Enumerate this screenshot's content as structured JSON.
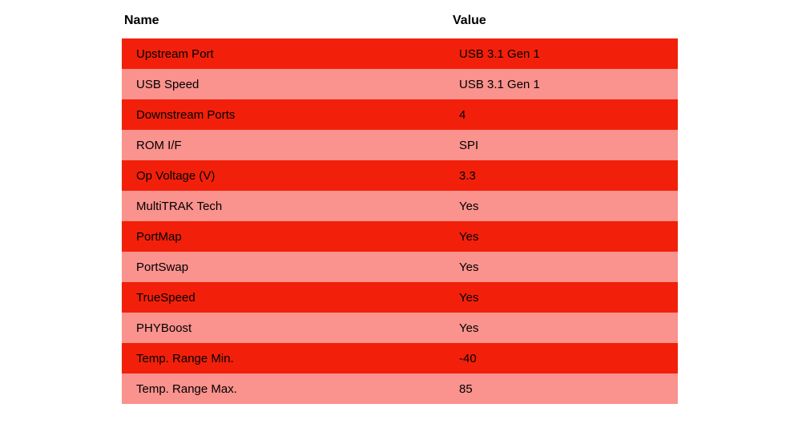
{
  "colors": {
    "background": "#ffffff",
    "row_red": "#f2200a",
    "row_pink": "#fa928d",
    "text": "#000000"
  },
  "table": {
    "headers": {
      "name": "Name",
      "value": "Value"
    },
    "rows": [
      {
        "name": "Upstream Port",
        "value": "USB 3.1 Gen 1"
      },
      {
        "name": "USB Speed",
        "value": "USB 3.1 Gen 1"
      },
      {
        "name": "Downstream Ports",
        "value": "4"
      },
      {
        "name": "ROM I/F",
        "value": "SPI"
      },
      {
        "name": "Op Voltage (V)",
        "value": "3.3"
      },
      {
        "name": "MultiTRAK Tech",
        "value": "Yes"
      },
      {
        "name": "PortMap",
        "value": "Yes"
      },
      {
        "name": "PortSwap",
        "value": "Yes"
      },
      {
        "name": "TrueSpeed",
        "value": "Yes"
      },
      {
        "name": "PHYBoost",
        "value": "Yes"
      },
      {
        "name": "Temp. Range Min.",
        "value": "-40"
      },
      {
        "name": "Temp. Range Max.",
        "value": "85"
      }
    ]
  }
}
